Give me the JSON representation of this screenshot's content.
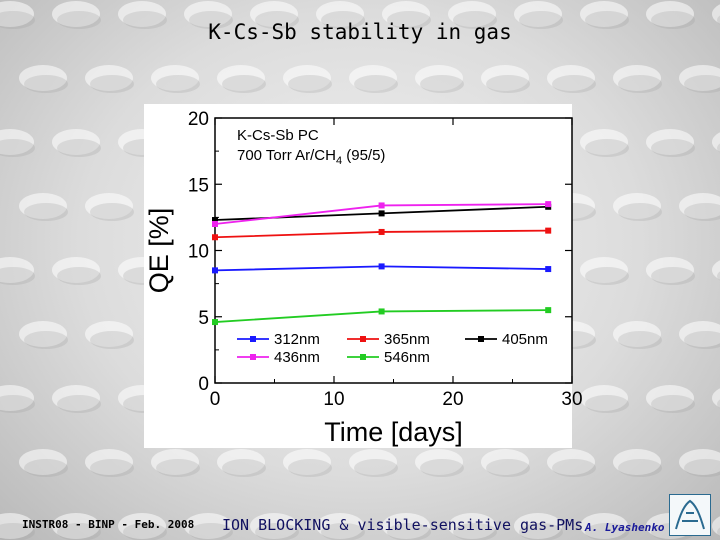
{
  "slide": {
    "title": "K-Cs-Sb stability in gas",
    "footer_left": "INSTR08 - BINP - Feb. 2008",
    "footer_center": "ION BLOCKING & visible-sensitive gas-PMs",
    "footer_right": "A. Lyashenko"
  },
  "chart_data": {
    "type": "line",
    "xlabel": "Time [days]",
    "ylabel": "QE [%]",
    "xlim": [
      0,
      30
    ],
    "ylim": [
      0,
      20
    ],
    "xticks": [
      "0",
      "10",
      "20",
      "30"
    ],
    "yticks": [
      "0",
      "5",
      "10",
      "15",
      "20"
    ],
    "grid": false,
    "legend": "bottom",
    "annotation": {
      "line1": "K-Cs-Sb PC",
      "line2_main": "700 Torr Ar/CH",
      "line2_sub": "4",
      "line2_rest": " (95/5)"
    },
    "series": [
      {
        "name": "312nm",
        "color": "#1a1aff",
        "x": [
          0,
          14,
          28
        ],
        "y": [
          8.5,
          8.8,
          8.6
        ]
      },
      {
        "name": "365nm",
        "color": "#ee1111",
        "x": [
          0,
          14,
          28
        ],
        "y": [
          11.0,
          11.4,
          11.5
        ]
      },
      {
        "name": "405nm",
        "color": "#000000",
        "x": [
          0,
          14,
          28
        ],
        "y": [
          12.3,
          12.8,
          13.3
        ]
      },
      {
        "name": "436nm",
        "color": "#ee22ee",
        "x": [
          0,
          14,
          28
        ],
        "y": [
          12.0,
          13.4,
          13.5
        ]
      },
      {
        "name": "546nm",
        "color": "#22cc22",
        "x": [
          0,
          14,
          28
        ],
        "y": [
          4.6,
          5.4,
          5.5
        ]
      }
    ]
  }
}
